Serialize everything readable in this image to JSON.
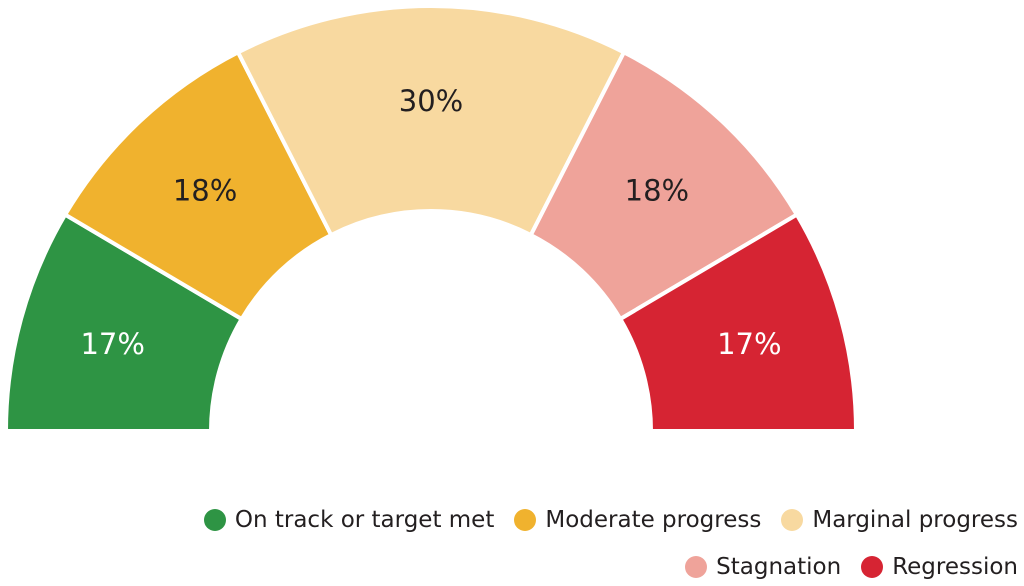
{
  "chart_data": {
    "type": "pie",
    "title": "",
    "slices": [
      {
        "label": "On track or target met",
        "value": 17,
        "display": "17%",
        "color": "#2e9444",
        "text_color": "#ffffff"
      },
      {
        "label": "Moderate progress",
        "value": 18,
        "display": "18%",
        "color": "#f0b22e",
        "text_color": "#231f20"
      },
      {
        "label": "Marginal progress",
        "value": 30,
        "display": "30%",
        "color": "#f8d9a0",
        "text_color": "#231f20"
      },
      {
        "label": "Stagnation",
        "value": 18,
        "display": "18%",
        "color": "#efa39a",
        "text_color": "#231f20"
      },
      {
        "label": "Regression",
        "value": 17,
        "display": "17%",
        "color": "#d62433",
        "text_color": "#ffffff"
      }
    ],
    "legend_placement": "bottom-right"
  }
}
